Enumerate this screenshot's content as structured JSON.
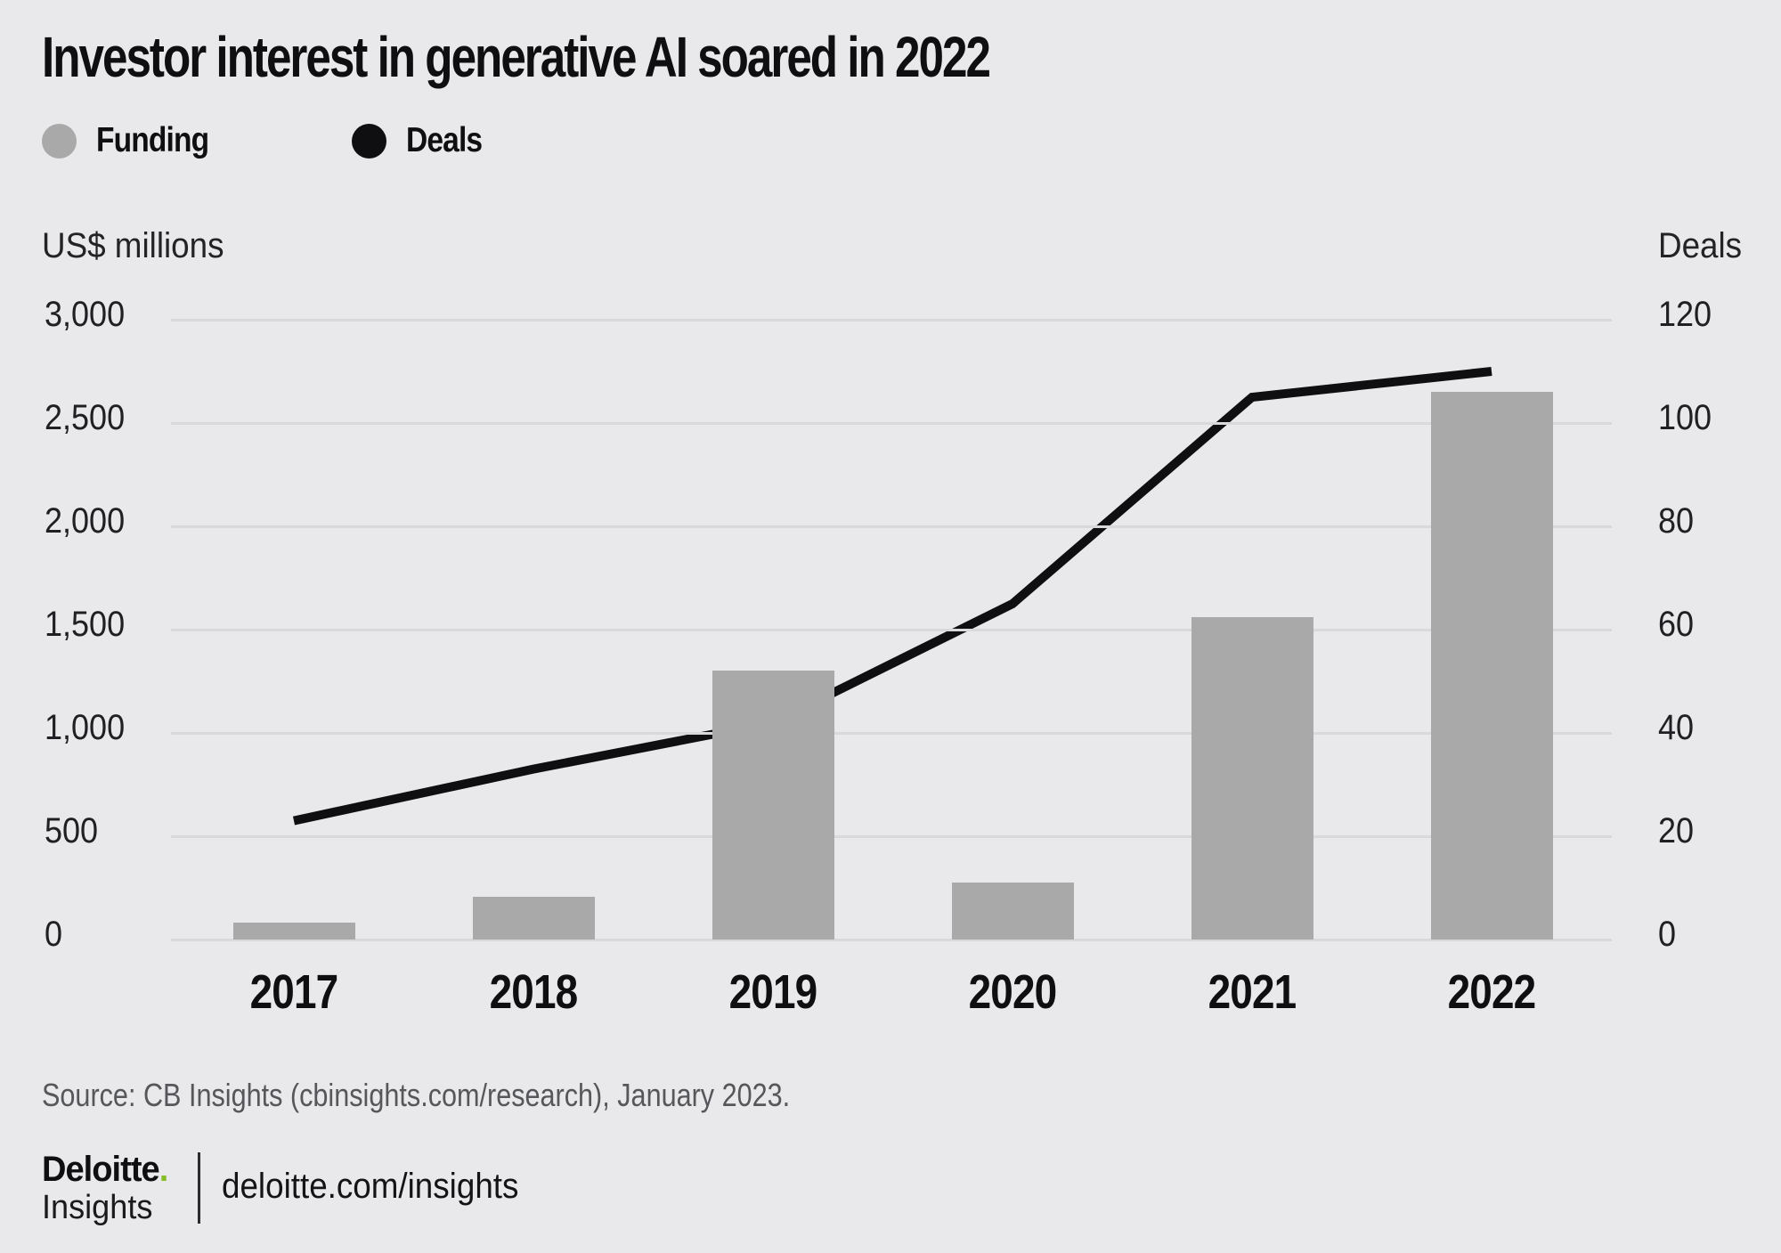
{
  "header": {
    "title": "Investor interest in generative AI soared in 2022"
  },
  "legend": [
    {
      "label": "Funding",
      "color": "#a9a9aa",
      "marker": "circle"
    },
    {
      "label": "Deals",
      "color": "#0f0f12",
      "marker": "circle"
    }
  ],
  "chart_data": {
    "type": "bar+line",
    "title": "Investor interest in generative AI soared in 2022",
    "categories": [
      "2017",
      "2018",
      "2019",
      "2020",
      "2021",
      "2022"
    ],
    "series": [
      {
        "name": "Funding",
        "type": "bar",
        "axis": "left",
        "unit": "US$ millions",
        "values": [
          80,
          205,
          1300,
          275,
          1560,
          2650
        ]
      },
      {
        "name": "Deals",
        "type": "line",
        "axis": "right",
        "unit": "deals",
        "values": [
          23,
          33,
          42,
          65,
          105,
          110
        ]
      }
    ],
    "left_axis": {
      "title": "US$ millions",
      "ticks": [
        "3,000",
        "2,500",
        "2,000",
        "1,500",
        "1,000",
        "500",
        "0"
      ],
      "tick_values": [
        3000,
        2500,
        2000,
        1500,
        1000,
        500,
        0
      ],
      "range": [
        0,
        3000
      ]
    },
    "right_axis": {
      "title": "Deals",
      "ticks": [
        "120",
        "100",
        "80",
        "60",
        "40",
        "20",
        "0"
      ],
      "tick_values": [
        120,
        100,
        80,
        60,
        40,
        20,
        0
      ],
      "range": [
        0,
        120
      ]
    },
    "grid": true,
    "legend_position": "top-left"
  },
  "footer": {
    "source": "Source: CB Insights (cbinsights.com/research), January 2023.",
    "logo": {
      "brand": "Deloitte",
      "brand_dot": ".",
      "sub": "Insights",
      "dot_color": "#86BC25"
    },
    "site": "deloitte.com/insights"
  },
  "colors": {
    "background": "#e9e9eb",
    "gridline": "#d8d9db",
    "bar": "#a9a9aa",
    "line": "#0f0f12",
    "text": "#0f0f11",
    "muted_text": "#56575b",
    "brand_green": "#86BC25"
  }
}
